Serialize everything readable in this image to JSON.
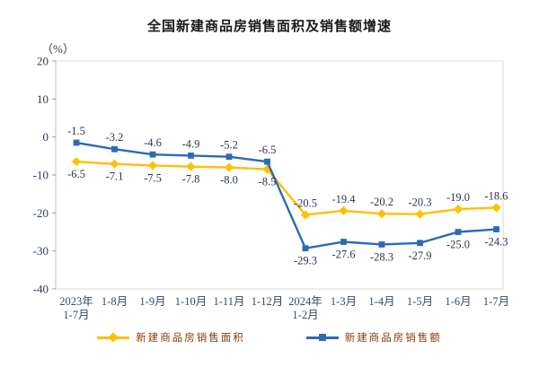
{
  "chart_data": {
    "type": "line",
    "title": "全国新建商品房销售面积及销售额增速",
    "unit": "（%）",
    "categories": [
      "2023年\n1-7月",
      "1-8月",
      "1-9月",
      "1-10月",
      "1-11月",
      "1-12月",
      "2024年\n1-2月",
      "1-3月",
      "1-4月",
      "1-5月",
      "1-6月",
      "1-7月"
    ],
    "series": [
      {
        "name": "新建商品房销售面积",
        "color": "#FFC000",
        "marker": "diamond",
        "values": [
          -6.5,
          -7.1,
          -7.5,
          -7.8,
          -8.0,
          -8.5,
          -20.5,
          -19.4,
          -20.2,
          -20.3,
          -19.0,
          -18.6
        ],
        "labels": [
          "-6.5",
          "-7.1",
          "-7.5",
          "-7.8",
          "-8.0",
          "-8.5",
          "-20.5",
          "-19.4",
          "-20.2",
          "-20.3",
          "-19.0",
          "-18.6"
        ],
        "label_position": [
          "below",
          "below",
          "below",
          "below",
          "below",
          "below",
          "above",
          "above",
          "above",
          "above",
          "above",
          "above"
        ]
      },
      {
        "name": "新建商品房销售额",
        "color": "#2D6AB4",
        "marker": "square",
        "values": [
          -1.5,
          -3.2,
          -4.6,
          -4.9,
          -5.2,
          -6.5,
          -29.3,
          -27.6,
          -28.3,
          -27.9,
          -25.0,
          -24.3
        ],
        "labels": [
          "-1.5",
          "-3.2",
          "-4.6",
          "-4.9",
          "-5.2",
          "-6.5",
          "-29.3",
          "-27.6",
          "-28.3",
          "-27.9",
          "-25.0",
          "-24.3"
        ],
        "label_position": [
          "above",
          "above",
          "above",
          "above",
          "above",
          "above",
          "below",
          "below",
          "below",
          "below",
          "below",
          "below"
        ]
      }
    ],
    "ylim": [
      -40,
      20
    ],
    "yticks": [
      20,
      10,
      0,
      -10,
      -20,
      -30,
      -40
    ],
    "grid": false,
    "legend_position": "bottom",
    "style": {
      "plot_border_color": "#d9d9d9",
      "axis_line_color": "#bfbfbf",
      "tick_color": "#9b9b9b",
      "ytick_text_color": "#2f3c55",
      "xtick_text_color": "#3a4a68",
      "data_label_color": "#2b3550",
      "legend_text_color": "#843C0C",
      "title_color": "#1a1a1a"
    }
  }
}
